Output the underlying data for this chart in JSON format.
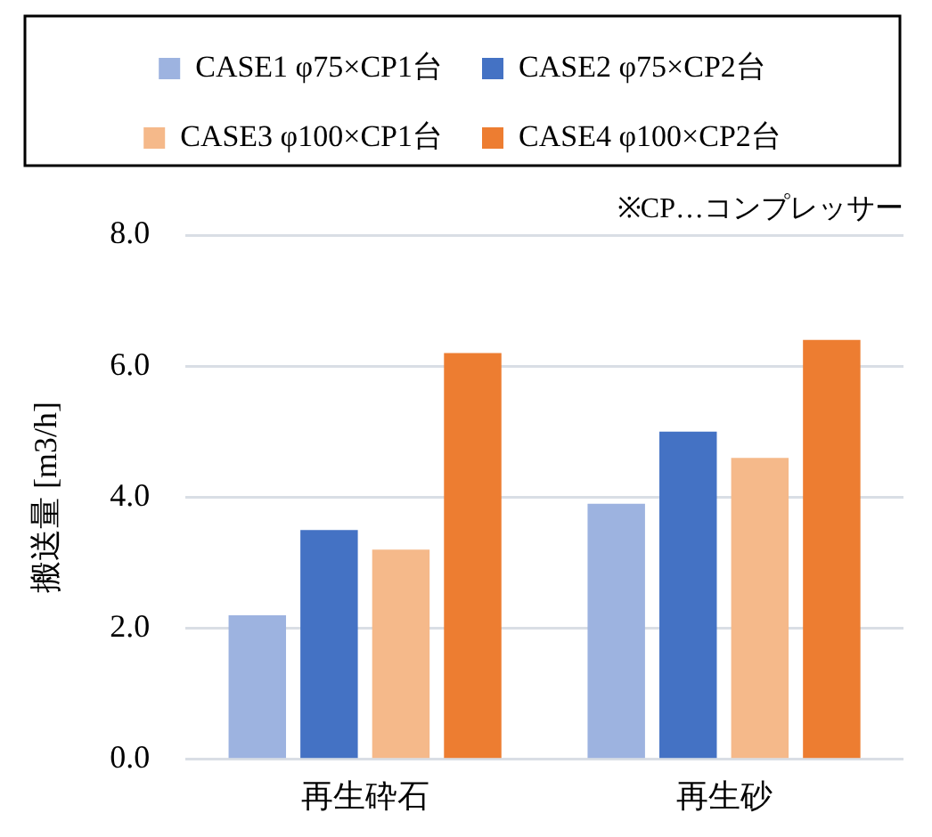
{
  "chart_data": {
    "type": "bar",
    "ylabel": "搬送量 [m3/h]",
    "categories": [
      "再生砕石",
      "再生砂"
    ],
    "series": [
      {
        "name": "CASE1 φ75×CP1台",
        "color": "#9db3e0",
        "values": [
          2.2,
          3.9
        ]
      },
      {
        "name": "CASE2 φ75×CP2台",
        "color": "#4472c4",
        "values": [
          3.5,
          5.0
        ]
      },
      {
        "name": "CASE3 φ100×CP1台",
        "color": "#f5b98a",
        "values": [
          3.2,
          4.6
        ]
      },
      {
        "name": "CASE4 φ100×CP2台",
        "color": "#ed7d31",
        "values": [
          6.2,
          6.4
        ]
      }
    ],
    "ylim": [
      0,
      8
    ],
    "yticks": [
      {
        "value": 0,
        "label": "0.0"
      },
      {
        "value": 2,
        "label": "2.0"
      },
      {
        "value": 4,
        "label": "4.0"
      },
      {
        "value": 6,
        "label": "6.0"
      },
      {
        "value": 8,
        "label": "8.0"
      }
    ],
    "grid": "y",
    "legend": "top",
    "annotations": [
      "※CP…コンプレッサー"
    ]
  }
}
